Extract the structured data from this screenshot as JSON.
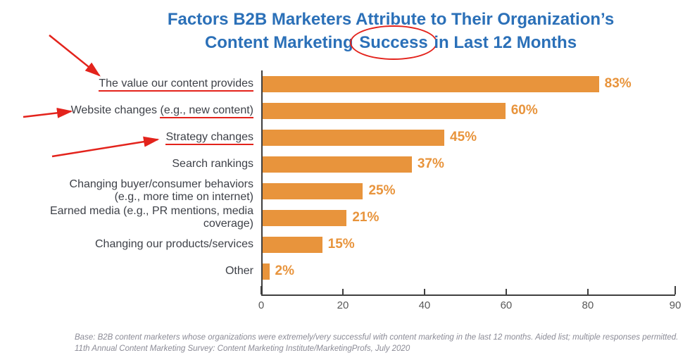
{
  "title": {
    "line1": "Factors B2B Marketers Attribute to Their Organization’s",
    "line2_before": "Content Marketing ",
    "line2_circled": "Success",
    "line2_after": " in Last 12 Months",
    "color": "#2b70b8"
  },
  "chart_data": {
    "type": "bar",
    "orientation": "horizontal",
    "title": "Factors B2B Marketers Attribute to Their Organization’s Content Marketing Success in Last 12 Months",
    "categories": [
      "The value our content provides",
      "Website changes (e.g., new content)",
      "Strategy changes",
      "Search rankings",
      "Changing buyer/consumer behaviors (e.g., more time on internet)",
      "Earned media (e.g., PR mentions, media coverage)",
      "Changing our products/services",
      "Other"
    ],
    "values": [
      83,
      60,
      45,
      37,
      25,
      21,
      15,
      2
    ],
    "value_labels": [
      "83%",
      "60%",
      "45%",
      "37%",
      "25%",
      "21%",
      "15%",
      "2%"
    ],
    "xlim": [
      0,
      90
    ],
    "xticks": [
      0,
      20,
      40,
      60,
      80,
      90
    ],
    "grid": false,
    "legend": false,
    "bar_color": "#e8943c",
    "value_label_color": "#e8943c",
    "axis_color": "#3f3f3f",
    "tick_label_color": "#595959",
    "rows": [
      {
        "lines": [
          [
            {
              "text": "The value our content provides",
              "underline": true
            }
          ]
        ],
        "value": 83,
        "label": "83%"
      },
      {
        "lines": [
          [
            {
              "text": "Website changes ",
              "underline": false
            },
            {
              "text": "(e.g., new content)",
              "underline": true
            }
          ]
        ],
        "value": 60,
        "label": "60%"
      },
      {
        "lines": [
          [
            {
              "text": "Strategy changes",
              "underline": true
            }
          ]
        ],
        "value": 45,
        "label": "45%"
      },
      {
        "lines": [
          [
            {
              "text": "Search rankings",
              "underline": false
            }
          ]
        ],
        "value": 37,
        "label": "37%"
      },
      {
        "lines": [
          [
            {
              "text": "Changing buyer/consumer behaviors",
              "underline": false
            }
          ],
          [
            {
              "text": "(e.g., more time on internet)",
              "underline": false
            }
          ]
        ],
        "value": 25,
        "label": "25%"
      },
      {
        "lines": [
          [
            {
              "text": "Earned media (e.g., PR mentions, media coverage)",
              "underline": false
            }
          ]
        ],
        "value": 21,
        "label": "21%"
      },
      {
        "lines": [
          [
            {
              "text": "Changing our products/services",
              "underline": false
            }
          ]
        ],
        "value": 15,
        "label": "15%"
      },
      {
        "lines": [
          [
            {
              "text": "Other",
              "underline": false
            }
          ]
        ],
        "value": 2,
        "label": "2%"
      }
    ]
  },
  "annotations": {
    "color": "#e3231c",
    "circled_word": "Success",
    "underlined_categories": [
      "The value our content provides",
      "(e.g., new content)",
      "Strategy changes"
    ],
    "arrow_count": 3
  },
  "footer": {
    "line1": "Base: B2B content marketers whose organizations were extremely/very successful with content marketing in the last 12 months. Aided list; multiple responses permitted.",
    "line2": "11th Annual Content Marketing Survey: Content Marketing Institute/MarketingProfs, July 2020"
  }
}
